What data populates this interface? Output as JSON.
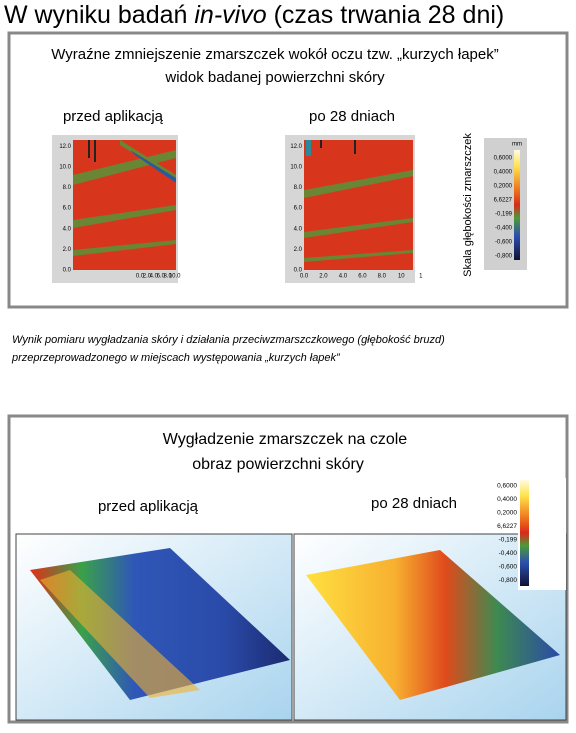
{
  "header": {
    "title_parts": [
      "W wyniku badań ",
      "in-vivo",
      " (czas trwania 28 dni)"
    ]
  },
  "panel1": {
    "title_lines": [
      "Wyraźne zmniejszenie zmarszczek wokół oczu tzw.  „kurzych łapek”",
      "widok badanej powierzchni skóry"
    ],
    "before_label": "przed aplikacją",
    "after_label": "po 28 dniach",
    "yticks": [
      "0.0",
      "2.0",
      "4.0",
      "6.0",
      "8.0",
      "10.0",
      "12.0"
    ],
    "xticks_before": [
      "0.0",
      "2.0",
      "4.0",
      "6.0",
      "8.0",
      "10.0"
    ],
    "xticks_after": [
      "0.0",
      "2.0",
      "4.0",
      "6.0",
      "8.0",
      "10",
      "1"
    ],
    "scale_title": "Skala głębokości zmarszczek",
    "scale_unit": "mm",
    "scale_labels": [
      "0,6000",
      "0,4000",
      "0,2000",
      "6,6227",
      "-0,199",
      "-0,400",
      "-0,600",
      "-0,800"
    ]
  },
  "caption": [
    "Wynik pomiaru wygładzania skóry i działania przeciwzmarszczkowego (głębokość bruzd)",
    "przeprzeprowadzonego w miejscach występowania „kurzych łapek”"
  ],
  "panel2": {
    "title_lines": [
      "Wygładzenie zmarszczek na czole",
      "obraz powierzchni skóry"
    ],
    "before_label": "przed aplikacją",
    "after_label": "po 28 dniach",
    "scale_labels": [
      "0,6000",
      "0,4000",
      "0,2000",
      "6,6227",
      "-0,199",
      "-0,400",
      "-0,600",
      "-0,800"
    ]
  }
}
